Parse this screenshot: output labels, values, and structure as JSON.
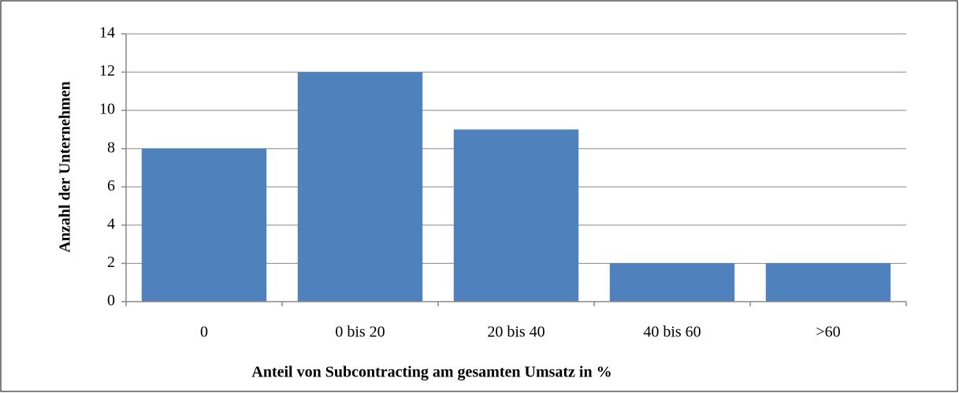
{
  "chart_data": {
    "type": "bar",
    "x_label": "Anteil von Subcontracting am gesamten Umsatz in %",
    "y_label": "Anzahl der Unternehmen",
    "categories": [
      "0",
      "0 bis 20",
      "20 bis 40",
      "40 bis 60",
      ">60"
    ],
    "values": [
      8,
      12,
      9,
      2,
      2
    ],
    "color": "#4f81bd",
    "ylim": [
      0,
      14
    ],
    "yticks": [
      0,
      2,
      4,
      6,
      8,
      10,
      12,
      14
    ],
    "grid": true
  }
}
